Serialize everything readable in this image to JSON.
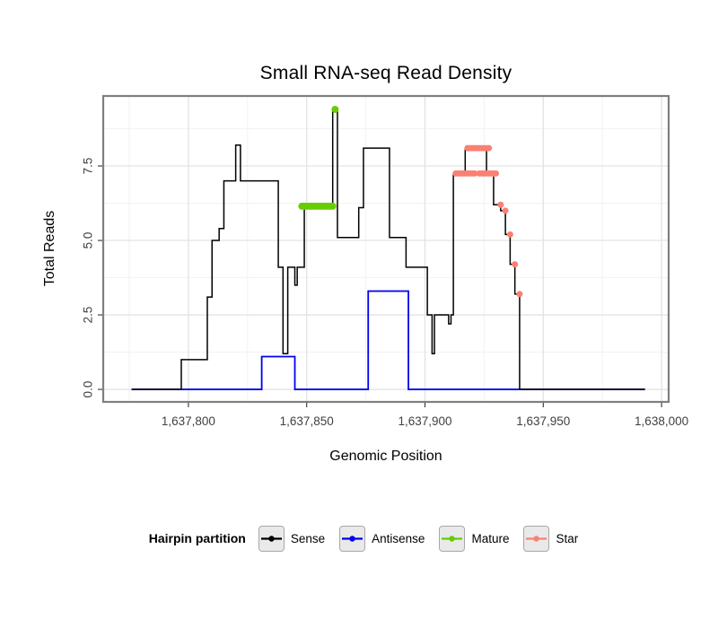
{
  "title": "Small RNA-seq Read Density",
  "axes": {
    "x_label": "Genomic Position",
    "y_label": "Total Reads"
  },
  "legend": {
    "title": "Hairpin partition",
    "entries": [
      {
        "label": "Sense",
        "color": "#000000"
      },
      {
        "label": "Antisense",
        "color": "#0000EE"
      },
      {
        "label": "Mature",
        "color": "#66CD00"
      },
      {
        "label": "Star",
        "color": "#FA8072"
      }
    ]
  },
  "chart_data": {
    "type": "line",
    "subtype": "step-density",
    "title": "Small RNA-seq Read Density",
    "xlabel": "Genomic Position",
    "ylabel": "Total Reads",
    "x_domain": [
      1637764,
      1638003
    ],
    "y_domain": [
      -0.42,
      9.85
    ],
    "x_ticks": [
      {
        "value": 1637800,
        "label": "1,637,800"
      },
      {
        "value": 1637850,
        "label": "1,637,850"
      },
      {
        "value": 1637900,
        "label": "1,637,900"
      },
      {
        "value": 1637950,
        "label": "1,637,950"
      },
      {
        "value": 1638000,
        "label": "1,638,000"
      }
    ],
    "y_ticks": [
      {
        "value": 0,
        "label": "0.0"
      },
      {
        "value": 2.5,
        "label": "2.5"
      },
      {
        "value": 5,
        "label": "5.0"
      },
      {
        "value": 7.5,
        "label": "7.5"
      }
    ],
    "x_minor": [
      1637775,
      1637825,
      1637875,
      1637925,
      1637975
    ],
    "y_minor": [
      1.25,
      3.75,
      6.25,
      8.75
    ],
    "grid": true,
    "legend_position": "bottom",
    "colors": {
      "grid_major": "#e3e3e3",
      "grid_minor": "#f1f1f1",
      "panel_border": "#7f7f7f",
      "tick": "#333333",
      "tick_label": "#404040"
    },
    "series": [
      {
        "name": "Antisense",
        "type": "step",
        "color": "#0000EE",
        "width": 1.8,
        "end": 1637993,
        "steps": [
          [
            1637776,
            0
          ],
          [
            1637831,
            1.1
          ],
          [
            1637845,
            0
          ],
          [
            1637876,
            3.3
          ],
          [
            1637893,
            0
          ]
        ]
      },
      {
        "name": "Sense",
        "type": "step",
        "color": "#000000",
        "width": 1.5,
        "end": 1637993,
        "steps": [
          [
            1637776,
            0
          ],
          [
            1637797,
            1
          ],
          [
            1637808,
            3.1
          ],
          [
            1637810,
            5
          ],
          [
            1637813,
            5.4
          ],
          [
            1637815,
            7
          ],
          [
            1637820,
            8.2
          ],
          [
            1637822,
            7
          ],
          [
            1637838,
            4.1
          ],
          [
            1637840,
            1.2
          ],
          [
            1637842,
            4.1
          ],
          [
            1637845,
            3.5
          ],
          [
            1637846,
            4.1
          ],
          [
            1637849,
            6.1
          ],
          [
            1637861,
            9.4
          ],
          [
            1637863,
            5.1
          ],
          [
            1637872,
            6.1
          ],
          [
            1637874,
            8.1
          ],
          [
            1637885,
            5.1
          ],
          [
            1637892,
            4.1
          ],
          [
            1637901,
            2.5
          ],
          [
            1637903,
            1.2
          ],
          [
            1637904,
            2.5
          ],
          [
            1637910,
            2.2
          ],
          [
            1637911,
            2.5
          ],
          [
            1637912,
            7.2
          ],
          [
            1637917,
            8.1
          ],
          [
            1637926,
            7.2
          ],
          [
            1637929,
            6.2
          ],
          [
            1637932,
            6.0
          ],
          [
            1637934,
            5.2
          ],
          [
            1637936,
            4.2
          ],
          [
            1637938,
            3.2
          ],
          [
            1637940,
            0
          ]
        ]
      },
      {
        "name": "Mature",
        "type": "points",
        "color": "#66CD00",
        "radius": 4,
        "points": [
          [
            1637848,
            6.15
          ],
          [
            1637849,
            6.15
          ],
          [
            1637850,
            6.15
          ],
          [
            1637851,
            6.15
          ],
          [
            1637852,
            6.15
          ],
          [
            1637853,
            6.15
          ],
          [
            1637854,
            6.15
          ],
          [
            1637855,
            6.15
          ],
          [
            1637856,
            6.15
          ],
          [
            1637857,
            6.15
          ],
          [
            1637858,
            6.15
          ],
          [
            1637859,
            6.15
          ],
          [
            1637860,
            6.15
          ],
          [
            1637861,
            6.15
          ],
          [
            1637862,
            9.4
          ]
        ]
      },
      {
        "name": "Star",
        "type": "points",
        "color": "#FA8072",
        "radius": 3.5,
        "points": [
          [
            1637913,
            7.25
          ],
          [
            1637914,
            7.25
          ],
          [
            1637915,
            7.25
          ],
          [
            1637916,
            7.25
          ],
          [
            1637917,
            7.25
          ],
          [
            1637918,
            7.25
          ],
          [
            1637919,
            7.25
          ],
          [
            1637920,
            7.25
          ],
          [
            1637921,
            7.25
          ],
          [
            1637918,
            8.1
          ],
          [
            1637919,
            8.1
          ],
          [
            1637920,
            8.1
          ],
          [
            1637921,
            8.1
          ],
          [
            1637922,
            8.1
          ],
          [
            1637923,
            8.1
          ],
          [
            1637924,
            8.1
          ],
          [
            1637925,
            8.1
          ],
          [
            1637926,
            8.1
          ],
          [
            1637927,
            8.1
          ],
          [
            1637923,
            7.25
          ],
          [
            1637924,
            7.25
          ],
          [
            1637925,
            7.25
          ],
          [
            1637926,
            7.25
          ],
          [
            1637927,
            7.25
          ],
          [
            1637928,
            7.25
          ],
          [
            1637929,
            7.25
          ],
          [
            1637930,
            7.25
          ],
          [
            1637932,
            6.2
          ],
          [
            1637934,
            6.0
          ],
          [
            1637936,
            5.2
          ],
          [
            1637938,
            4.2
          ],
          [
            1637940,
            3.2
          ]
        ]
      }
    ]
  }
}
